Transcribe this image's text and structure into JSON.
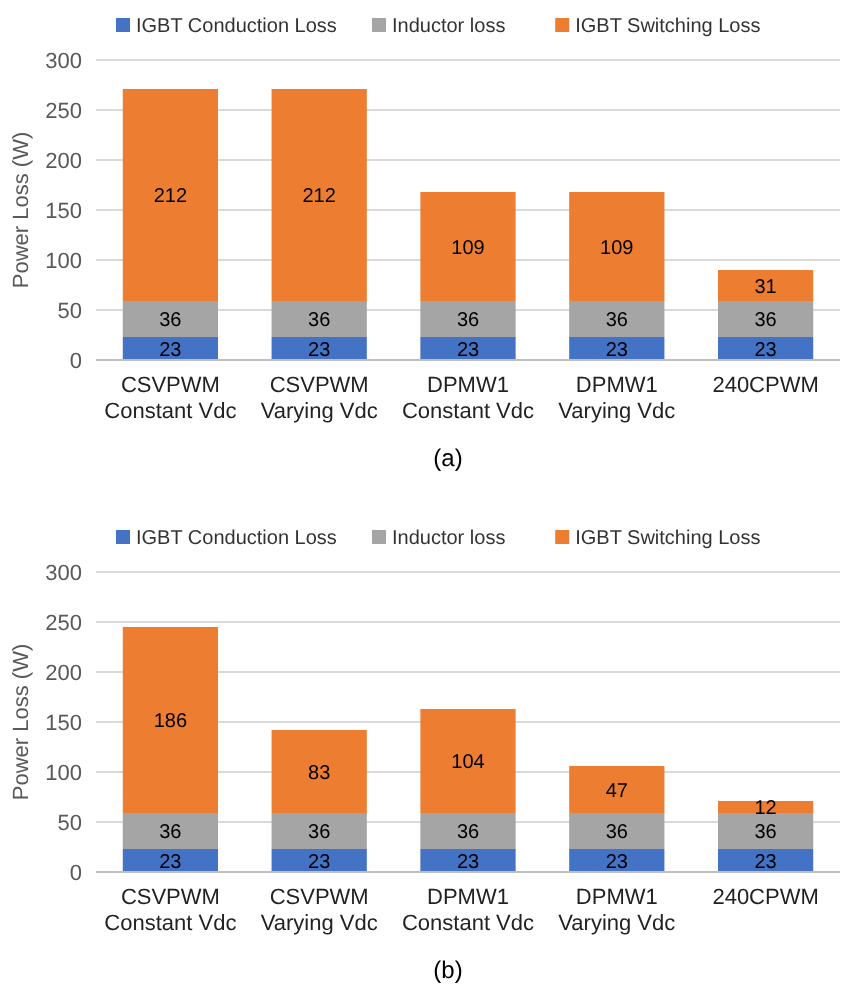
{
  "chart_data": [
    {
      "type": "bar",
      "stacked": true,
      "categories": [
        "CSVPWM\nConstant Vdc",
        "CSVPWM\nVarying Vdc",
        "DPMW1\nConstant Vdc",
        "DPMW1\nVarying Vdc",
        "240CPWM"
      ],
      "ylabel": "Power Loss (W)",
      "ylim": [
        0,
        300
      ],
      "yticks": [
        0,
        50,
        100,
        150,
        200,
        250,
        300
      ],
      "grid": "y",
      "legend": "top",
      "data_labels": true,
      "annotations": [
        "(a)"
      ],
      "series": [
        {
          "name": "IGBT Conduction Loss",
          "color": "#4472c4",
          "values": [
            23,
            23,
            23,
            23,
            23
          ]
        },
        {
          "name": "Inductor loss",
          "color": "#a5a5a5",
          "values": [
            36,
            36,
            36,
            36,
            36
          ]
        },
        {
          "name": "IGBT Switching Loss",
          "color": "#ed7d31",
          "values": [
            212,
            212,
            109,
            109,
            31
          ]
        }
      ]
    },
    {
      "type": "bar",
      "stacked": true,
      "categories": [
        "CSVPWM\nConstant Vdc",
        "CSVPWM\nVarying Vdc",
        "DPMW1\nConstant Vdc",
        "DPMW1\nVarying Vdc",
        "240CPWM"
      ],
      "ylabel": "Power Loss (W)",
      "ylim": [
        0,
        300
      ],
      "yticks": [
        0,
        50,
        100,
        150,
        200,
        250,
        300
      ],
      "grid": "y",
      "legend": "top",
      "data_labels": true,
      "annotations": [
        "(b)"
      ],
      "series": [
        {
          "name": "IGBT Conduction Loss",
          "color": "#4472c4",
          "values": [
            23,
            23,
            23,
            23,
            23
          ]
        },
        {
          "name": "Inductor loss",
          "color": "#a5a5a5",
          "values": [
            36,
            36,
            36,
            36,
            36
          ]
        },
        {
          "name": "IGBT Switching Loss",
          "color": "#ed7d31",
          "values": [
            186,
            83,
            104,
            47,
            12
          ]
        }
      ]
    }
  ]
}
